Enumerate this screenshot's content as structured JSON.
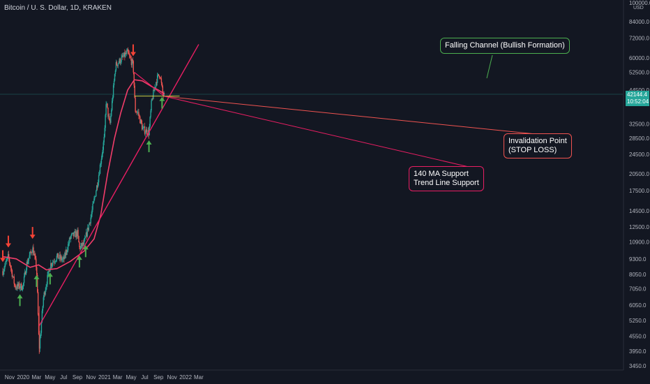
{
  "header": {
    "symbol": "Bitcoin / U. S. Dollar, 1D, KRAKEN"
  },
  "price_axis": {
    "ticks": [
      "100000.0",
      "84000.0",
      "72000.0",
      "60000.0",
      "52500.0",
      "44500.0",
      "32500.0",
      "28500.0",
      "24500.0",
      "20500.0",
      "17500.0",
      "14500.0",
      "12500.0",
      "10900.0",
      "9300.0",
      "8050.0",
      "7050.0",
      "6050.0",
      "5250.0",
      "4550.0",
      "3950.0",
      "3450.0"
    ],
    "unit": "USD",
    "last_price": "42144.4",
    "countdown": "10:52:04"
  },
  "time_axis": {
    "ticks": [
      "Nov",
      "2020",
      "Mar",
      "May",
      "Jul",
      "Sep",
      "Nov",
      "2021",
      "Mar",
      "May",
      "Jul",
      "Sep",
      "Nov",
      "2022",
      "Mar"
    ]
  },
  "annotations": {
    "falling_channel": "Falling Channel (Bullish Formation)",
    "invalidation_line1": "Invalidation Point",
    "invalidation_line2": "(STOP LOSS)",
    "support_line1": "140 MA Support",
    "support_line2": "Trend Line Support"
  },
  "colors": {
    "background": "#131722",
    "up": "#26a69a",
    "down": "#ef5350",
    "ma": "#f23d6a",
    "trendline": "#e91e63",
    "level": "#c8d34a",
    "arrow_up": "#4caf50",
    "arrow_down": "#f44336"
  },
  "chart_data": {
    "type": "candlestick",
    "symbol": "Bitcoin / U. S. Dollar",
    "interval": "1D",
    "exchange": "KRAKEN",
    "y_scale": "log",
    "ylim": [
      3450,
      100000
    ],
    "x_range": [
      "2019-10",
      "2022-03"
    ],
    "price_path_approx": [
      {
        "date": "2019-10-01",
        "close": 8300
      },
      {
        "date": "2019-10-26",
        "close": 9500
      },
      {
        "date": "2019-11-25",
        "close": 7200
      },
      {
        "date": "2019-12-31",
        "close": 7200
      },
      {
        "date": "2020-01-15",
        "close": 8800
      },
      {
        "date": "2020-02-12",
        "close": 10300
      },
      {
        "date": "2020-03-01",
        "close": 8600
      },
      {
        "date": "2020-03-13",
        "close": 4000
      },
      {
        "date": "2020-04-01",
        "close": 6500
      },
      {
        "date": "2020-05-01",
        "close": 8800
      },
      {
        "date": "2020-06-01",
        "close": 9500
      },
      {
        "date": "2020-07-01",
        "close": 9200
      },
      {
        "date": "2020-08-01",
        "close": 11400
      },
      {
        "date": "2020-09-01",
        "close": 11800
      },
      {
        "date": "2020-09-10",
        "close": 10300
      },
      {
        "date": "2020-10-01",
        "close": 10700
      },
      {
        "date": "2020-11-01",
        "close": 13800
      },
      {
        "date": "2020-12-01",
        "close": 19000
      },
      {
        "date": "2021-01-01",
        "close": 29000
      },
      {
        "date": "2021-01-08",
        "close": 40000
      },
      {
        "date": "2021-01-25",
        "close": 32000
      },
      {
        "date": "2021-02-20",
        "close": 56000
      },
      {
        "date": "2021-03-15",
        "close": 59000
      },
      {
        "date": "2021-04-14",
        "close": 63000
      },
      {
        "date": "2021-05-10",
        "close": 56000
      },
      {
        "date": "2021-05-19",
        "close": 37000
      },
      {
        "date": "2021-06-01",
        "close": 36000
      },
      {
        "date": "2021-06-22",
        "close": 31000
      },
      {
        "date": "2021-07-20",
        "close": 30000
      },
      {
        "date": "2021-08-01",
        "close": 40000
      },
      {
        "date": "2021-08-23",
        "close": 49000
      },
      {
        "date": "2021-09-07",
        "close": 52000
      },
      {
        "date": "2021-09-20",
        "close": 43000
      },
      {
        "date": "2021-09-28",
        "close": 42144
      }
    ],
    "ma140_approx": [
      {
        "date": "2019-10-01",
        "value": 9500
      },
      {
        "date": "2019-12-01",
        "value": 9300
      },
      {
        "date": "2020-02-01",
        "value": 8600
      },
      {
        "date": "2020-03-10",
        "value": 8800
      },
      {
        "date": "2020-04-15",
        "value": 8400
      },
      {
        "date": "2020-06-01",
        "value": 8500
      },
      {
        "date": "2020-08-01",
        "value": 9100
      },
      {
        "date": "2020-10-01",
        "value": 10000
      },
      {
        "date": "2020-11-15",
        "value": 11200
      },
      {
        "date": "2020-12-15",
        "value": 14000
      },
      {
        "date": "2021-01-15",
        "value": 20500
      },
      {
        "date": "2021-02-15",
        "value": 28500
      },
      {
        "date": "2021-03-15",
        "value": 36000
      },
      {
        "date": "2021-04-15",
        "value": 44500
      },
      {
        "date": "2021-05-15",
        "value": 49000
      },
      {
        "date": "2021-06-20",
        "value": 48500
      },
      {
        "date": "2021-08-01",
        "value": 46000
      },
      {
        "date": "2021-09-01",
        "value": 44500
      },
      {
        "date": "2021-09-28",
        "value": 43000
      }
    ],
    "horizontal_level": 42100,
    "trend_line": [
      {
        "date": "2020-03-13",
        "value": 5000
      },
      {
        "date": "2022-03-01",
        "value": 68000
      }
    ],
    "falling_channel_top": [
      {
        "date": "2021-05-15",
        "value": 52500
      },
      {
        "date": "2021-09-28",
        "value": 42000
      }
    ],
    "markers_down": [
      "2019-10-01",
      "2019-10-26",
      "2020-02-12",
      "2021-05-10"
    ],
    "markers_up": [
      "2019-12-17",
      "2020-03-01",
      "2020-05-01",
      "2020-09-10",
      "2020-10-08",
      "2021-07-20",
      "2021-09-17"
    ],
    "annotations": [
      "Falling Channel (Bullish Formation)",
      "Invalidation Point (STOP LOSS)",
      "140 MA Support Trend Line Support"
    ]
  }
}
